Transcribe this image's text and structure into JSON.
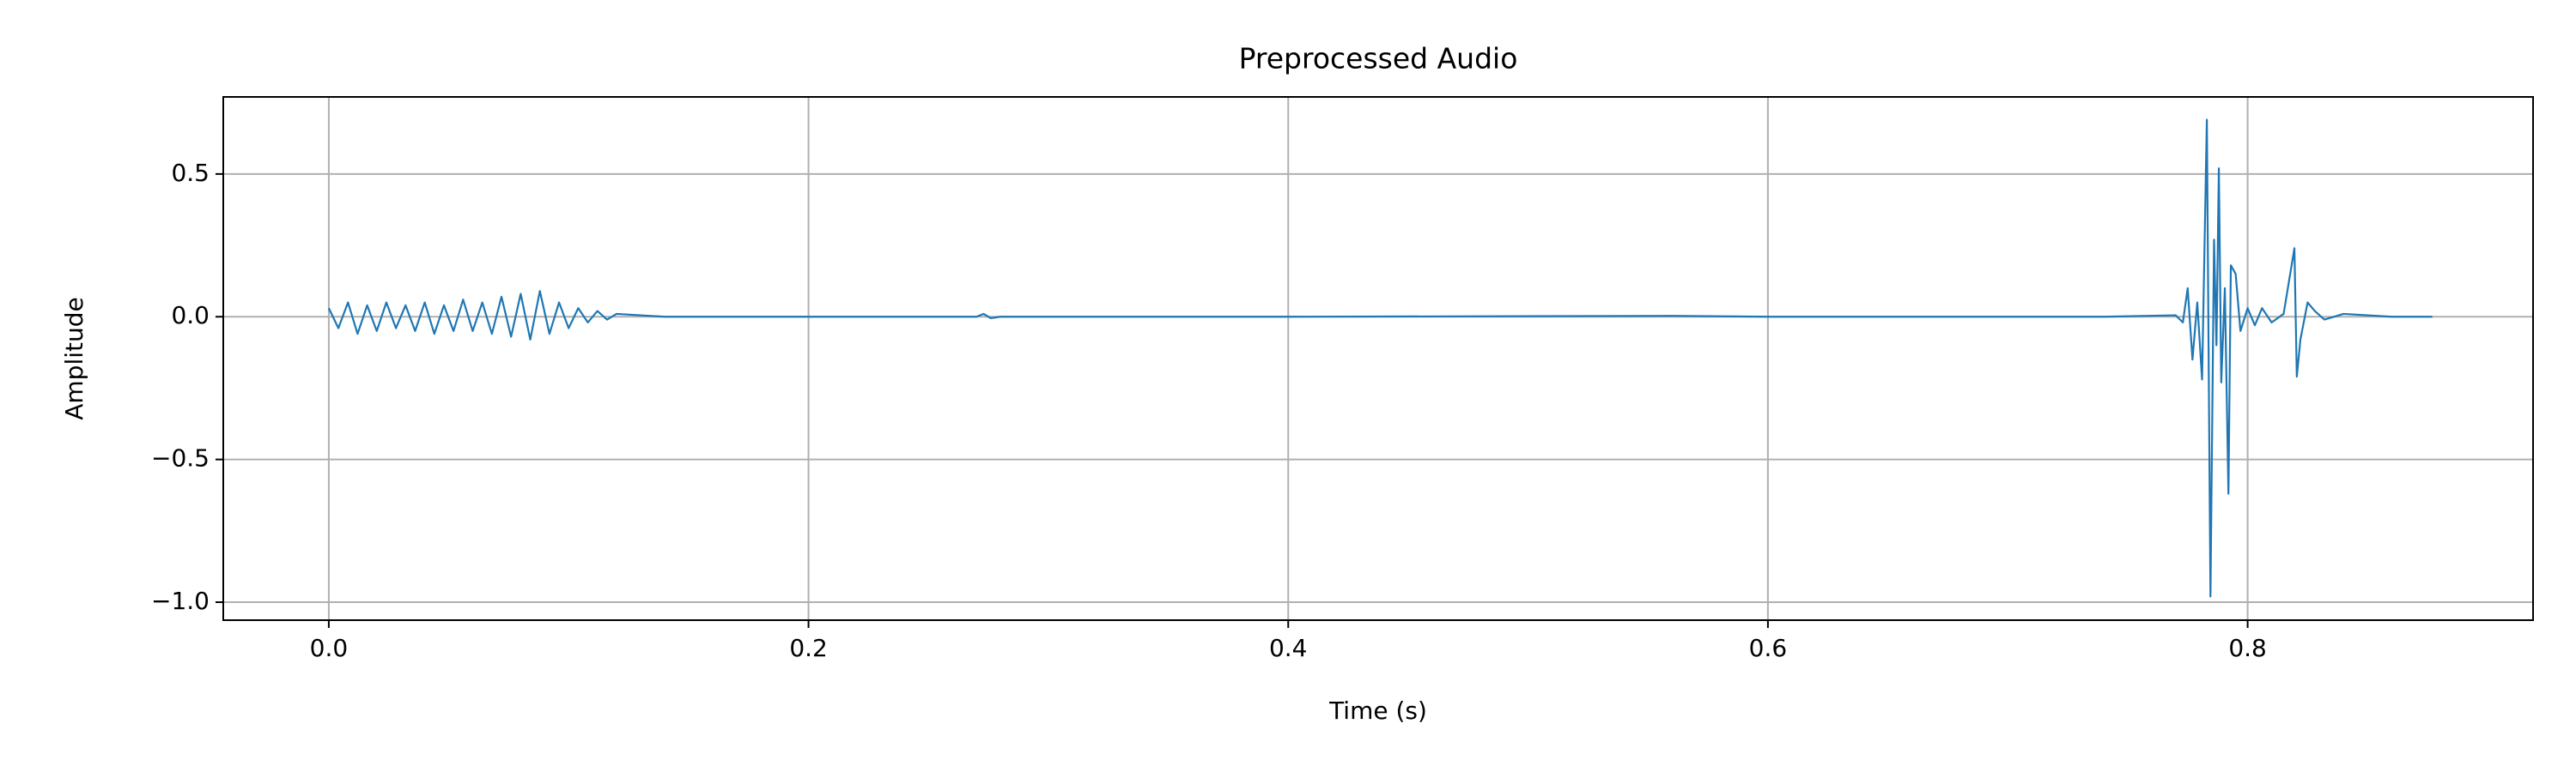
{
  "chart_data": {
    "type": "line",
    "title": "Preprocessed Audio",
    "x_label": "Time (s)",
    "y_label": "Amplitude",
    "x": [
      0,
      0.004,
      0.008,
      0.012,
      0.016,
      0.02,
      0.024,
      0.028,
      0.032,
      0.036,
      0.04,
      0.044,
      0.048,
      0.052,
      0.056,
      0.06,
      0.064,
      0.068,
      0.072,
      0.076,
      0.08,
      0.084,
      0.088,
      0.092,
      0.096,
      0.1,
      0.104,
      0.108,
      0.112,
      0.116,
      0.12,
      0.14,
      0.2,
      0.27,
      0.273,
      0.276,
      0.28,
      0.4,
      0.56,
      0.6,
      0.74,
      0.77,
      0.773,
      0.775,
      0.777,
      0.779,
      0.781,
      0.783,
      0.7845,
      0.786,
      0.787,
      0.788,
      0.789,
      0.7905,
      0.792,
      0.793,
      0.795,
      0.797,
      0.8,
      0.803,
      0.806,
      0.81,
      0.815,
      0.8195,
      0.8205,
      0.822,
      0.825,
      0.828,
      0.832,
      0.84,
      0.86,
      0.877
    ],
    "values": [
      0.03,
      -0.04,
      0.05,
      -0.06,
      0.04,
      -0.05,
      0.05,
      -0.04,
      0.04,
      -0.05,
      0.05,
      -0.06,
      0.04,
      -0.05,
      0.06,
      -0.05,
      0.05,
      -0.06,
      0.07,
      -0.07,
      0.08,
      -0.08,
      0.09,
      -0.06,
      0.05,
      -0.04,
      0.03,
      -0.02,
      0.02,
      -0.01,
      0.01,
      0,
      0,
      0,
      0.01,
      -0.005,
      0,
      0,
      0.003,
      0,
      0,
      0.005,
      -0.02,
      0.1,
      -0.15,
      0.05,
      -0.22,
      0.69,
      -0.98,
      0.27,
      -0.1,
      0.52,
      -0.23,
      0.1,
      -0.62,
      0.18,
      0.15,
      -0.05,
      0.03,
      -0.03,
      0.03,
      -0.02,
      0.01,
      0.24,
      -0.21,
      -0.08,
      0.05,
      0.02,
      -0.01,
      0.01,
      0,
      0
    ],
    "color": "#1f77b4",
    "xlim": [
      -0.044,
      0.919
    ],
    "ylim": [
      -1.063,
      0.77
    ],
    "xticks": [
      {
        "value": 0,
        "label": "0.0"
      },
      {
        "value": 0.2,
        "label": "0.2"
      },
      {
        "value": 0.4,
        "label": "0.4"
      },
      {
        "value": 0.6,
        "label": "0.6"
      },
      {
        "value": 0.8,
        "label": "0.8"
      }
    ],
    "yticks": [
      {
        "value": 0.5,
        "label": "0.5"
      },
      {
        "value": 0,
        "label": "0.0"
      },
      {
        "value": -0.5,
        "label": "−0.5"
      },
      {
        "value": -1,
        "label": "−1.0"
      }
    ],
    "grid": true
  }
}
